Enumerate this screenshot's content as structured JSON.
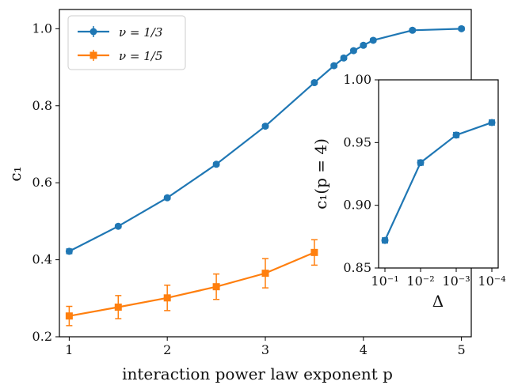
{
  "chart_data": [
    {
      "type": "line",
      "xlabel": "interaction power law exponent p",
      "ylabel": "c₁",
      "xlim": [
        0.9,
        5.1
      ],
      "ylim": [
        0.2,
        1.05
      ],
      "x_ticks": [
        1,
        2,
        3,
        4,
        5
      ],
      "y_ticks": [
        0.2,
        0.4,
        0.6,
        0.8,
        1.0
      ],
      "x_tick_labels": [
        "1",
        "2",
        "3",
        "4",
        "5"
      ],
      "y_tick_labels": [
        "0.2",
        "0.4",
        "0.6",
        "0.8",
        "1.0"
      ],
      "legend_position": "top-left",
      "grid": false,
      "series": [
        {
          "name": "ν = 1/3",
          "color": "#1f77b4",
          "marker": "circle",
          "x": [
            1.0,
            1.5,
            2.0,
            2.5,
            3.0,
            3.5,
            3.7,
            3.8,
            3.9,
            4.0,
            4.1,
            4.5,
            5.0
          ],
          "y": [
            0.422,
            0.487,
            0.561,
            0.648,
            0.747,
            0.86,
            0.904,
            0.924,
            0.943,
            0.957,
            0.97,
            0.996,
            1.0
          ],
          "err": [
            0.006,
            0.004,
            0.004,
            0.004,
            0.004,
            0.004,
            0.004,
            0.004,
            0.004,
            0.004,
            0.004,
            0.004,
            0.004
          ]
        },
        {
          "name": "ν = 1/5",
          "color": "#ff7f0e",
          "marker": "square",
          "x": [
            1.0,
            1.5,
            2.0,
            2.5,
            3.0,
            3.5
          ],
          "y": [
            0.254,
            0.277,
            0.301,
            0.33,
            0.365,
            0.419
          ],
          "err": [
            0.025,
            0.03,
            0.033,
            0.033,
            0.038,
            0.033
          ]
        }
      ]
    },
    {
      "type": "line",
      "xlabel": "Δ",
      "ylabel": "c₁(p = 4)",
      "xlim": [
        0.5,
        3.2
      ],
      "ylim": [
        0.85,
        1.0
      ],
      "x_ticks": [
        1,
        2,
        3,
        4
      ],
      "y_ticks": [
        0.85,
        0.9,
        0.95,
        1.0
      ],
      "x_tick_labels": [
        "10⁻¹",
        "10⁻²",
        "10⁻³",
        "10⁻⁴"
      ],
      "y_tick_labels": [
        "0.85",
        "0.90",
        "0.95",
        "1.00"
      ],
      "x_scale": "log (decreasing Δ)",
      "grid": false,
      "series": [
        {
          "color": "#1f77b4",
          "marker": "circle",
          "x": [
            0.1,
            0.01,
            0.001,
            0.0001
          ],
          "y": [
            0.872,
            0.934,
            0.956,
            0.966
          ],
          "err": [
            0.002,
            0.002,
            0.002,
            0.002
          ]
        }
      ]
    }
  ]
}
